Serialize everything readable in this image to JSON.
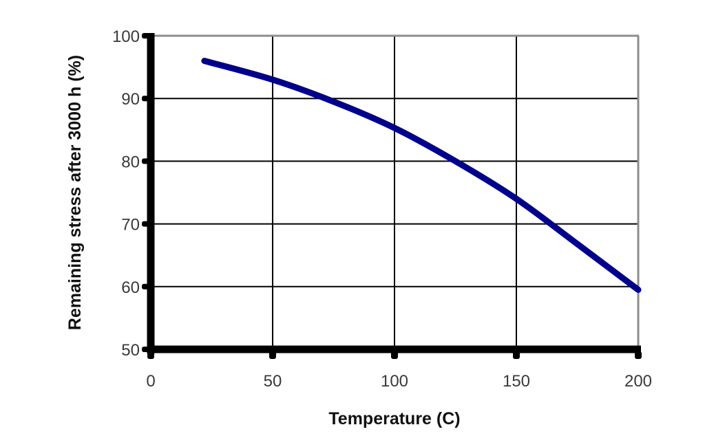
{
  "chart_data": {
    "type": "line",
    "title": "",
    "xlabel": "Temperature (C)",
    "ylabel": "Remaining stress after 3000 h (%)",
    "xlim": [
      0,
      200
    ],
    "ylim": [
      50,
      100
    ],
    "xticks": [
      0,
      50,
      100,
      150,
      200
    ],
    "yticks": [
      50,
      60,
      70,
      80,
      90,
      100
    ],
    "grid": true,
    "legend": null,
    "series": [
      {
        "name": "Remaining stress",
        "color": "#00008B",
        "x": [
          22,
          50,
          75,
          100,
          125,
          150,
          175,
          200
        ],
        "y": [
          96,
          93,
          89.5,
          85.3,
          80,
          74,
          66.8,
          59.5
        ]
      }
    ]
  },
  "colors": {
    "background": "#ffffff",
    "axis": "#000000",
    "grid": "#000000",
    "frame": "#8c8c8c",
    "line": "#00008B"
  }
}
